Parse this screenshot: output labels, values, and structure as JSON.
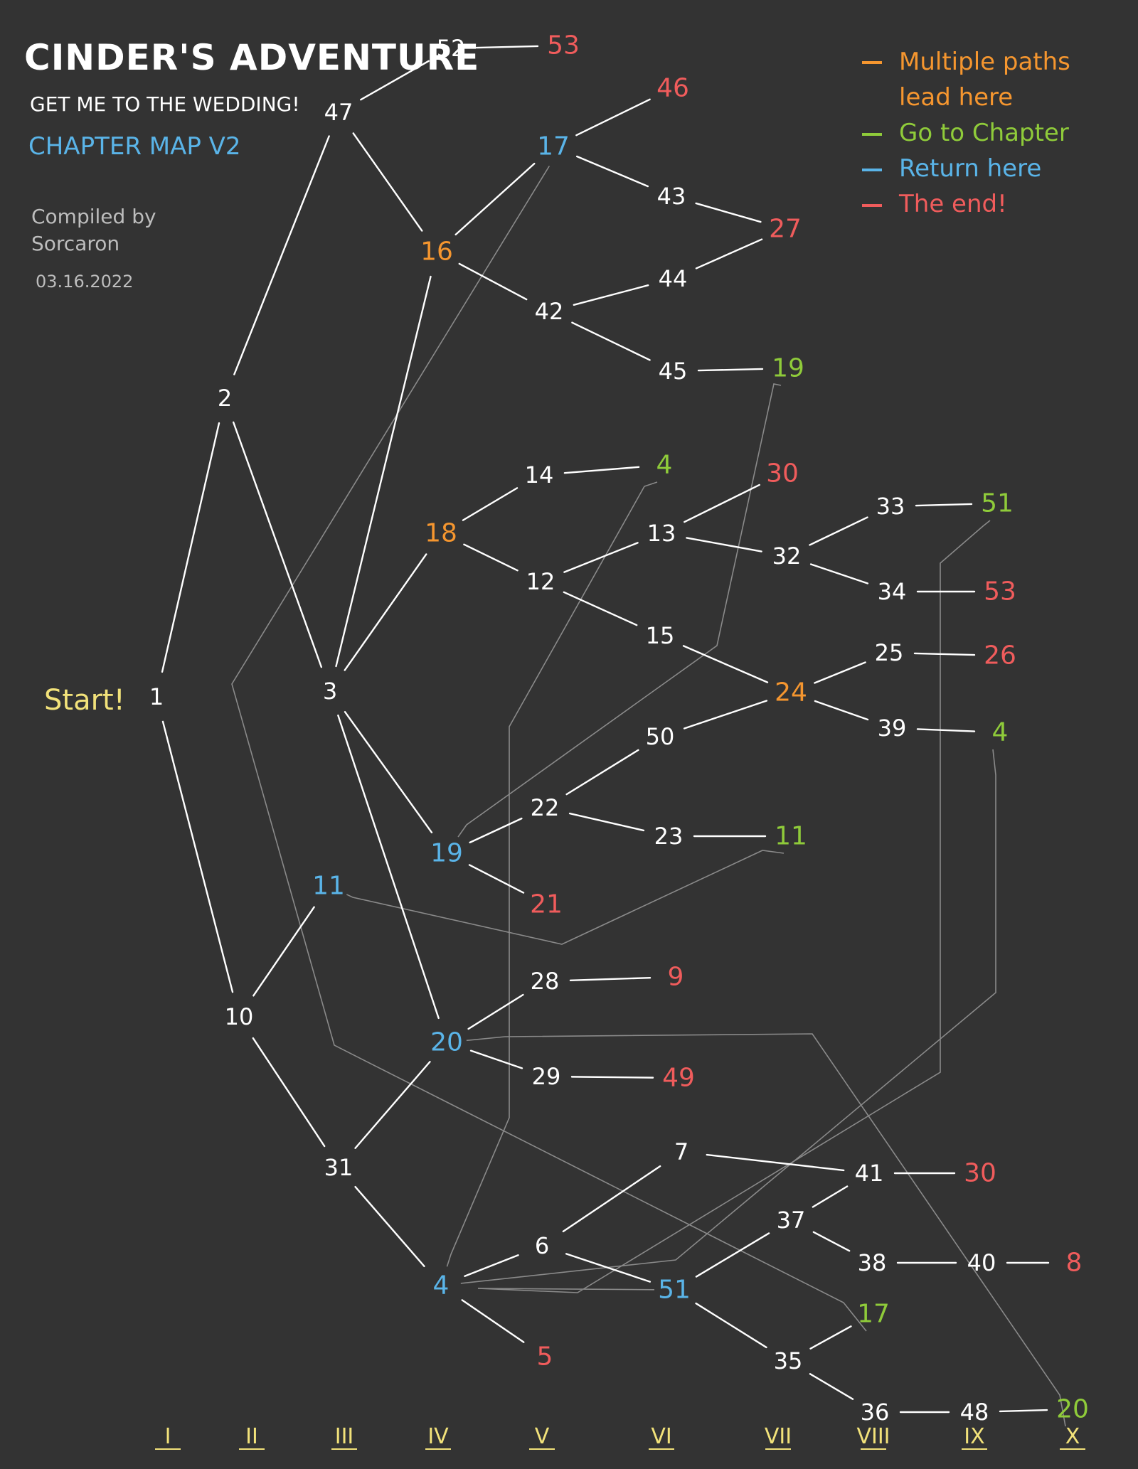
{
  "header": {
    "title": "CINDER'S ADVENTURE",
    "subtitle": "GET ME TO THE WEDDING!",
    "map_version": "CHAPTER MAP V2",
    "compiled_by": "Compiled by Sorcaron",
    "date": "03.16.2022"
  },
  "legend": [
    {
      "label": "Multiple paths lead here",
      "color": "#f5962f"
    },
    {
      "label": "Go to Chapter",
      "color": "#8fcb3a"
    },
    {
      "label": "Return here",
      "color": "#5ab4e8"
    },
    {
      "label": "The end!",
      "color": "#f05c5c"
    }
  ],
  "colors": {
    "background": "#333333",
    "node": "#ffffff",
    "multi": "#f5962f",
    "goto": "#8fcb3a",
    "return": "#5ab4e8",
    "end": "#f05c5c",
    "column_label": "#f2e27a",
    "edge": "#ffffff",
    "jump": "#8a8a8a"
  },
  "start_label": "Start!",
  "columns": [
    "I",
    "II",
    "III",
    "IV",
    "V",
    "VI",
    "VII",
    "VIII",
    "IX",
    "X"
  ],
  "nodes": [
    {
      "id": "n1",
      "label": "1",
      "type": "normal"
    },
    {
      "id": "n2",
      "label": "2",
      "type": "normal"
    },
    {
      "id": "n10",
      "label": "10",
      "type": "normal"
    },
    {
      "id": "n47",
      "label": "47",
      "type": "normal"
    },
    {
      "id": "n3",
      "label": "3",
      "type": "normal"
    },
    {
      "id": "n11",
      "label": "11",
      "type": "return"
    },
    {
      "id": "n31",
      "label": "31",
      "type": "normal"
    },
    {
      "id": "n52",
      "label": "52",
      "type": "normal"
    },
    {
      "id": "n53a",
      "label": "53",
      "type": "end"
    },
    {
      "id": "n16",
      "label": "16",
      "type": "multi"
    },
    {
      "id": "n18",
      "label": "18",
      "type": "multi"
    },
    {
      "id": "n19",
      "label": "19",
      "type": "return"
    },
    {
      "id": "n20",
      "label": "20",
      "type": "return"
    },
    {
      "id": "n4",
      "label": "4",
      "type": "return"
    },
    {
      "id": "n17",
      "label": "17",
      "type": "return"
    },
    {
      "id": "n42",
      "label": "42",
      "type": "normal"
    },
    {
      "id": "n14",
      "label": "14",
      "type": "normal"
    },
    {
      "id": "n12",
      "label": "12",
      "type": "normal"
    },
    {
      "id": "n22",
      "label": "22",
      "type": "normal"
    },
    {
      "id": "n21",
      "label": "21",
      "type": "end"
    },
    {
      "id": "n28",
      "label": "28",
      "type": "normal"
    },
    {
      "id": "n29",
      "label": "29",
      "type": "normal"
    },
    {
      "id": "n6",
      "label": "6",
      "type": "normal"
    },
    {
      "id": "n5",
      "label": "5",
      "type": "end"
    },
    {
      "id": "n46",
      "label": "46",
      "type": "end"
    },
    {
      "id": "n43",
      "label": "43",
      "type": "normal"
    },
    {
      "id": "n44",
      "label": "44",
      "type": "normal"
    },
    {
      "id": "n45",
      "label": "45",
      "type": "normal"
    },
    {
      "id": "g4a",
      "label": "4",
      "type": "goto"
    },
    {
      "id": "n13",
      "label": "13",
      "type": "normal"
    },
    {
      "id": "n15",
      "label": "15",
      "type": "normal"
    },
    {
      "id": "n50",
      "label": "50",
      "type": "normal"
    },
    {
      "id": "n23",
      "label": "23",
      "type": "normal"
    },
    {
      "id": "e9",
      "label": "9",
      "type": "end"
    },
    {
      "id": "e49",
      "label": "49",
      "type": "end"
    },
    {
      "id": "n7",
      "label": "7",
      "type": "normal"
    },
    {
      "id": "n51",
      "label": "51",
      "type": "return"
    },
    {
      "id": "e27",
      "label": "27",
      "type": "end"
    },
    {
      "id": "g19",
      "label": "19",
      "type": "goto"
    },
    {
      "id": "e30a",
      "label": "30",
      "type": "end"
    },
    {
      "id": "n32",
      "label": "32",
      "type": "normal"
    },
    {
      "id": "n24",
      "label": "24",
      "type": "multi"
    },
    {
      "id": "g11",
      "label": "11",
      "type": "goto"
    },
    {
      "id": "n37",
      "label": "37",
      "type": "normal"
    },
    {
      "id": "n35",
      "label": "35",
      "type": "normal"
    },
    {
      "id": "n33",
      "label": "33",
      "type": "normal"
    },
    {
      "id": "n34",
      "label": "34",
      "type": "normal"
    },
    {
      "id": "n25",
      "label": "25",
      "type": "normal"
    },
    {
      "id": "n39",
      "label": "39",
      "type": "normal"
    },
    {
      "id": "n41",
      "label": "41",
      "type": "normal"
    },
    {
      "id": "n38",
      "label": "38",
      "type": "normal"
    },
    {
      "id": "g17",
      "label": "17",
      "type": "goto"
    },
    {
      "id": "n36",
      "label": "36",
      "type": "normal"
    },
    {
      "id": "g51",
      "label": "51",
      "type": "goto"
    },
    {
      "id": "e53b",
      "label": "53",
      "type": "end"
    },
    {
      "id": "e26",
      "label": "26",
      "type": "end"
    },
    {
      "id": "g4b",
      "label": "4",
      "type": "goto"
    },
    {
      "id": "e30b",
      "label": "30",
      "type": "end"
    },
    {
      "id": "n40",
      "label": "40",
      "type": "normal"
    },
    {
      "id": "n48",
      "label": "48",
      "type": "normal"
    },
    {
      "id": "e8",
      "label": "8",
      "type": "end"
    },
    {
      "id": "g20",
      "label": "20",
      "type": "goto"
    }
  ],
  "edges": [
    [
      "n1",
      "n2"
    ],
    [
      "n1",
      "n10"
    ],
    [
      "n2",
      "n47"
    ],
    [
      "n2",
      "n3"
    ],
    [
      "n10",
      "n11"
    ],
    [
      "n10",
      "n31"
    ],
    [
      "n47",
      "n52"
    ],
    [
      "n52",
      "n53a"
    ],
    [
      "n47",
      "n16"
    ],
    [
      "n3",
      "n16"
    ],
    [
      "n3",
      "n18"
    ],
    [
      "n3",
      "n19"
    ],
    [
      "n3",
      "n20"
    ],
    [
      "n31",
      "n20"
    ],
    [
      "n31",
      "n4"
    ],
    [
      "n16",
      "n17"
    ],
    [
      "n16",
      "n42"
    ],
    [
      "n17",
      "n46"
    ],
    [
      "n17",
      "n43"
    ],
    [
      "n43",
      "e27"
    ],
    [
      "n42",
      "n44"
    ],
    [
      "n44",
      "e27"
    ],
    [
      "n42",
      "n45"
    ],
    [
      "n45",
      "g19"
    ],
    [
      "n18",
      "n14"
    ],
    [
      "n14",
      "g4a"
    ],
    [
      "n18",
      "n12"
    ],
    [
      "n12",
      "n13"
    ],
    [
      "n12",
      "n15"
    ],
    [
      "n13",
      "e30a"
    ],
    [
      "n13",
      "n32"
    ],
    [
      "n32",
      "n33"
    ],
    [
      "n33",
      "g51"
    ],
    [
      "n32",
      "n34"
    ],
    [
      "n34",
      "e53b"
    ],
    [
      "n15",
      "n24"
    ],
    [
      "n19",
      "n22"
    ],
    [
      "n19",
      "n21"
    ],
    [
      "n22",
      "n50"
    ],
    [
      "n50",
      "n24"
    ],
    [
      "n22",
      "n23"
    ],
    [
      "n23",
      "g11"
    ],
    [
      "n24",
      "n25"
    ],
    [
      "n25",
      "e26"
    ],
    [
      "n24",
      "n39"
    ],
    [
      "n39",
      "g4b"
    ],
    [
      "n20",
      "n28"
    ],
    [
      "n28",
      "e9"
    ],
    [
      "n20",
      "n29"
    ],
    [
      "n29",
      "e49"
    ],
    [
      "n4",
      "n6"
    ],
    [
      "n4",
      "n5"
    ],
    [
      "n6",
      "n7"
    ],
    [
      "n6",
      "n51"
    ],
    [
      "n7",
      "n41"
    ],
    [
      "n41",
      "e30b"
    ],
    [
      "n51",
      "n37"
    ],
    [
      "n37",
      "n41"
    ],
    [
      "n37",
      "n38"
    ],
    [
      "n38",
      "n40"
    ],
    [
      "n40",
      "e8"
    ],
    [
      "n51",
      "n35"
    ],
    [
      "n35",
      "g17"
    ],
    [
      "n35",
      "n36"
    ],
    [
      "n36",
      "n48"
    ],
    [
      "n48",
      "g20"
    ]
  ],
  "jumps": [
    {
      "from": "g19",
      "to": "n19"
    },
    {
      "from": "g11",
      "to": "n11"
    },
    {
      "from": "g4a",
      "to": "n4"
    },
    {
      "from": "g4b",
      "to": "n4"
    },
    {
      "from": "g51",
      "to": "n51"
    },
    {
      "from": "g17",
      "to": "n17"
    },
    {
      "from": "g20",
      "to": "n20"
    }
  ]
}
